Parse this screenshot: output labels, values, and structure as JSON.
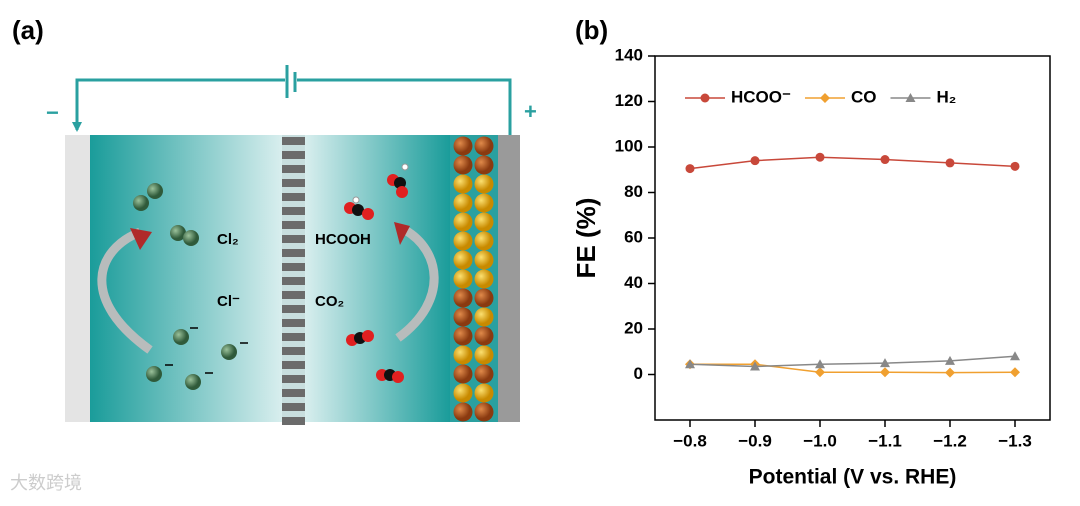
{
  "panel_a": {
    "label": "(a)",
    "cl2": "Cl₂",
    "hcooh": "HCOOH",
    "cl_ion": "Cl⁻",
    "co2": "CO₂",
    "minus": "−",
    "plus": "+"
  },
  "panel_b_label": "(b)",
  "watermark": "大数跨境",
  "chart_data": {
    "type": "line",
    "xlabel": "Potential (V vs. RHE)",
    "ylabel": "FE (%)",
    "categories": [
      "−0.8",
      "−0.9",
      "−1.0",
      "−1.1",
      "−1.2",
      "−1.3"
    ],
    "series": [
      {
        "name": "HCOO⁻",
        "color": "#c8483a",
        "marker": "circle",
        "values": [
          90.5,
          94,
          95.5,
          94.5,
          93,
          91.5
        ]
      },
      {
        "name": "CO",
        "color": "#f0a030",
        "marker": "diamond",
        "values": [
          4.5,
          4.5,
          1,
          1,
          0.8,
          1
        ]
      },
      {
        "name": "H₂",
        "color": "#888888",
        "marker": "triangle",
        "values": [
          4.5,
          3.5,
          4.5,
          5,
          6,
          8
        ]
      }
    ],
    "ylim": [
      -20,
      140
    ],
    "yticks": [
      0,
      20,
      40,
      60,
      80,
      100,
      120,
      140
    ],
    "legend": "upper left"
  }
}
